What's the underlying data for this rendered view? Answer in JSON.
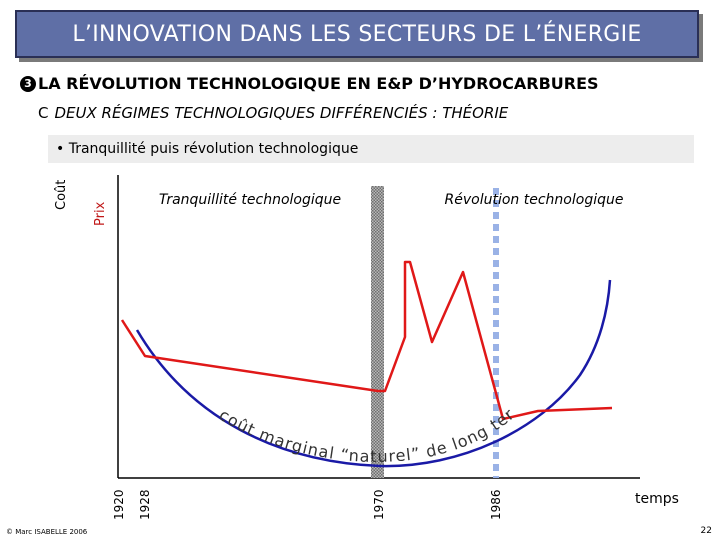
{
  "header": {
    "title": "L’INNOVATION DANS LES SECTEURS DE L’ÉNERGIE",
    "section_number": "3",
    "section_title": "LA RÉVOLUTION TECHNOLOGIQUE EN E&P D’HYDROCARBURES",
    "sub_letter": "C",
    "sub_title": "DEUX RÉGIMES TECHNOLOGIQUES DIFFÉRENCIÉS : THÉORIE"
  },
  "bullet": "• Tranquillité puis révolution technologique",
  "diagram": {
    "y_label_top": "Coût",
    "y_label_bottom": "Prix",
    "x_label": "temps",
    "phase_left": "Tranquillité technologique",
    "phase_right": "Révolution technologique",
    "curve_label": "coût marginal “naturel” de long terme",
    "years": [
      "1920",
      "1928",
      "1970",
      "1986"
    ],
    "colors": {
      "cost_curve": "#1a1aa6",
      "price_line": "#e01818",
      "band_1970": "#9a9a9a",
      "line_1986": "#9ab2e6"
    }
  },
  "footer": {
    "author": "© Marc ISABELLE 2006",
    "page": "22"
  }
}
